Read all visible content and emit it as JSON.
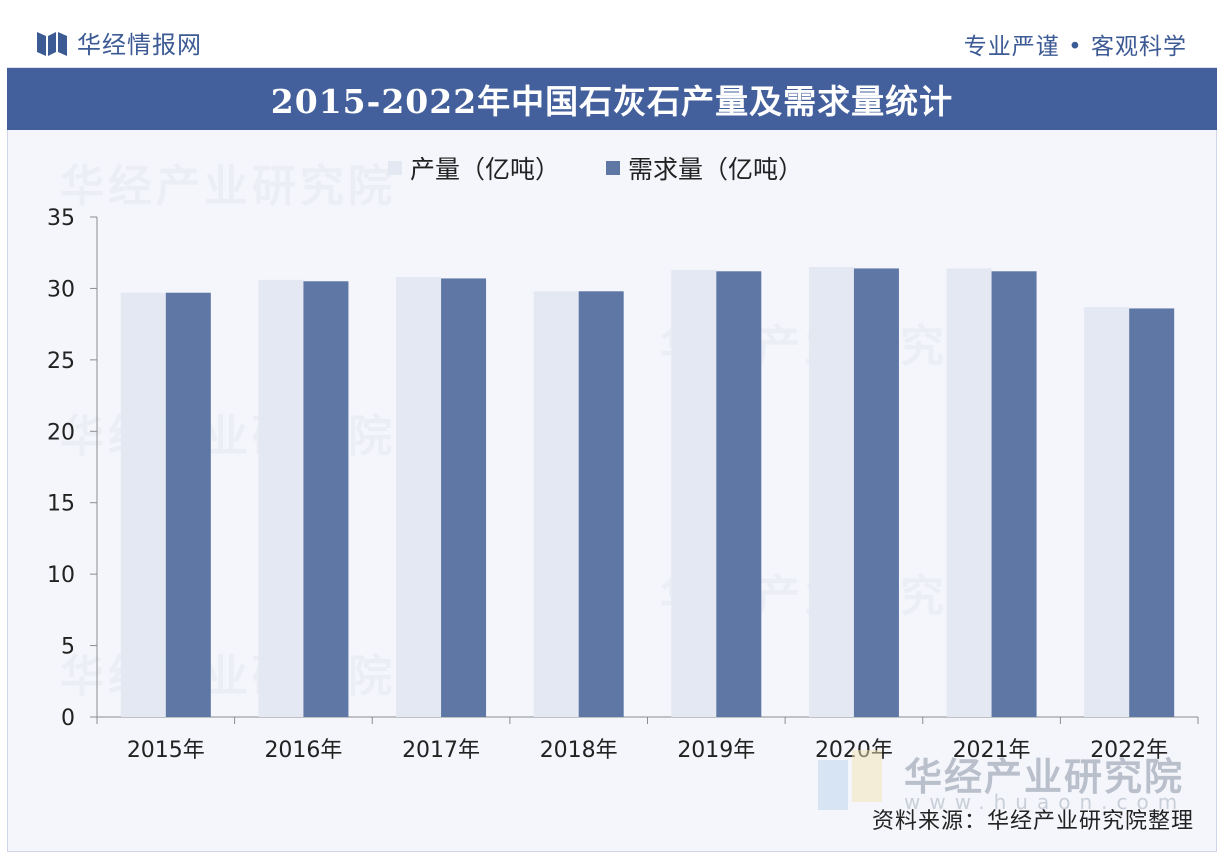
{
  "header": {
    "brand": "华经情报网",
    "slogan": "专业严谨 • 客观科学"
  },
  "watermarks": {
    "text": "华经产业研究院",
    "url": "www.huaon.com"
  },
  "source": "资料来源：华经产业研究院整理",
  "colors": {
    "title_bar": "#44609c",
    "series_production": "#e3e8f2",
    "series_demand": "#5e77a5",
    "brand_text": "#3c5a94"
  },
  "chart_data": {
    "type": "bar",
    "title": "2015-2022年中国石灰石产量及需求量统计",
    "categories": [
      "2015年",
      "2016年",
      "2017年",
      "2018年",
      "2019年",
      "2020年",
      "2021年",
      "2022年"
    ],
    "series": [
      {
        "name": "产量（亿吨）",
        "values": [
          29.7,
          30.6,
          30.8,
          29.8,
          31.3,
          31.5,
          31.4,
          28.7
        ]
      },
      {
        "name": "需求量（亿吨）",
        "values": [
          29.7,
          30.5,
          30.7,
          29.8,
          31.2,
          31.4,
          31.2,
          28.6
        ]
      }
    ],
    "ylim": [
      0,
      35
    ],
    "yticks": [
      0,
      5,
      10,
      15,
      20,
      25,
      30,
      35
    ],
    "legend_position": "top",
    "grid": false
  }
}
